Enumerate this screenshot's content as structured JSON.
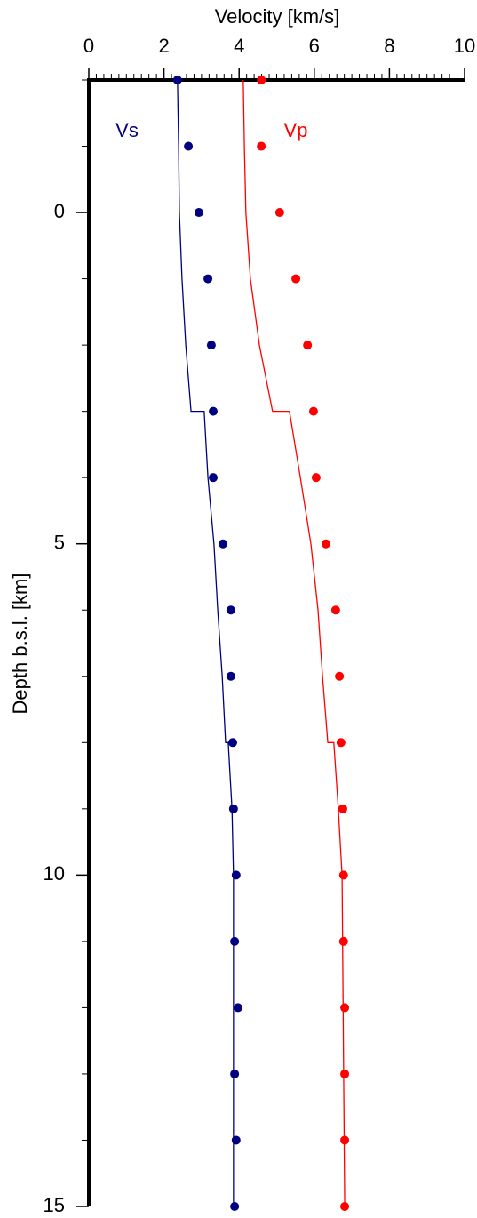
{
  "chart_data": {
    "type": "scatter",
    "title": "Velocity [km/s]",
    "y_label": "Depth b.s.l. [km]",
    "xlim": [
      0,
      10
    ],
    "xticks": [
      0,
      2,
      4,
      6,
      8,
      10
    ],
    "ylim": [
      -2,
      15
    ],
    "yticks": [
      0,
      5,
      10,
      15
    ],
    "y_inverted": true,
    "depths": [
      -2,
      -1,
      0,
      1,
      2,
      3,
      4,
      5,
      6,
      7,
      8,
      9,
      10,
      11,
      12,
      13,
      14,
      15
    ],
    "series": [
      {
        "name": "Vs",
        "color": "#000080",
        "values": [
          2.36,
          2.65,
          2.93,
          3.17,
          3.26,
          3.31,
          3.31,
          3.57,
          3.78,
          3.78,
          3.83,
          3.85,
          3.92,
          3.88,
          3.97,
          3.88,
          3.92,
          3.88
        ],
        "profile_velocity": [
          2.36,
          2.39,
          2.41,
          2.48,
          2.58,
          2.72,
          3.07,
          3.17,
          3.33,
          3.43,
          3.55,
          3.64,
          3.71,
          3.81,
          3.85,
          3.85
        ],
        "profile_depth": [
          -2,
          -1,
          0,
          1,
          2,
          3,
          3,
          4,
          5,
          6,
          7,
          8,
          8,
          9,
          10,
          15
        ]
      },
      {
        "name": "Vp",
        "color": "#ff0000",
        "values": [
          4.59,
          4.59,
          5.08,
          5.51,
          5.82,
          5.98,
          6.05,
          6.31,
          6.57,
          6.67,
          6.71,
          6.76,
          6.78,
          6.78,
          6.81,
          6.81,
          6.81,
          6.81
        ],
        "profile_velocity": [
          4.11,
          4.14,
          4.18,
          4.3,
          4.54,
          4.89,
          5.34,
          5.63,
          5.91,
          6.1,
          6.22,
          6.36,
          6.52,
          6.64,
          6.74,
          6.81
        ],
        "profile_depth": [
          -2,
          -1,
          0,
          1,
          2,
          3,
          3,
          4,
          5,
          6,
          7,
          8,
          8,
          9,
          10,
          15
        ]
      }
    ]
  }
}
